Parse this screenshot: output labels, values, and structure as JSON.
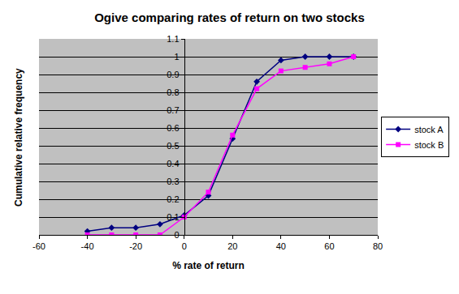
{
  "chart_data": {
    "type": "line",
    "title": "Ogive comparing rates of return on two stocks",
    "x_label": "% rate of return",
    "y_label": "Cumulative relative frequency",
    "x": [
      -40,
      -30,
      -20,
      -10,
      0,
      10,
      20,
      30,
      40,
      50,
      60,
      70
    ],
    "series": [
      {
        "name": "stock A",
        "color": "#000080",
        "marker": "diamond",
        "line_style": "solid",
        "values": [
          0.02,
          0.04,
          0.04,
          0.06,
          0.11,
          0.22,
          0.54,
          0.86,
          0.98,
          1.0,
          1.0,
          1.0
        ]
      },
      {
        "name": "stock B",
        "color": "#ff00ff",
        "marker": "square",
        "line_style": "solid",
        "values": [
          0,
          0,
          0,
          0,
          0.1,
          0.24,
          0.56,
          0.82,
          0.92,
          0.94,
          0.96,
          1.0
        ]
      }
    ],
    "xlim": [
      -60,
      80
    ],
    "xticks": [
      -60,
      -40,
      -20,
      0,
      20,
      40,
      60,
      80
    ],
    "ylim": [
      0,
      1.1
    ],
    "yticks": [
      0,
      0.1,
      0.2,
      0.3,
      0.4,
      0.5,
      0.6,
      0.7,
      0.8,
      0.9,
      1,
      1.1
    ],
    "grid": true,
    "legend": "right"
  }
}
